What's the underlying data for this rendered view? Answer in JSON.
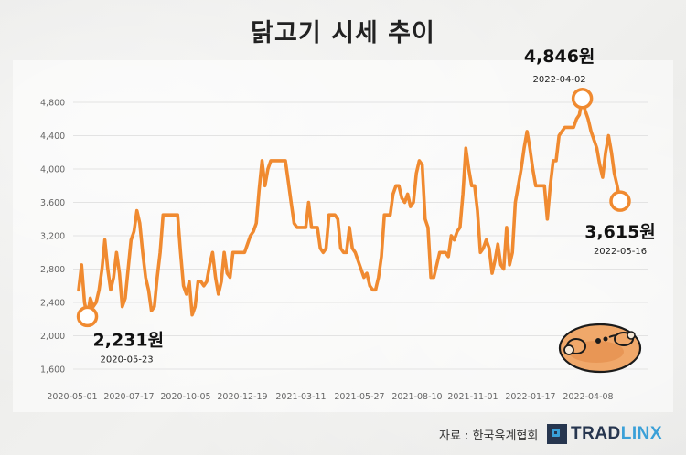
{
  "title": "닭고기 시세 추이",
  "source": "자료 : 한국육계협회",
  "logo": {
    "part1": "TRAD",
    "part2": "LINX"
  },
  "colors": {
    "line": "#f08a30",
    "marker_fill": "#ffffff",
    "grid": "#e3e3e3"
  },
  "chart_data": {
    "type": "line",
    "title": "닭고기 시세 추이",
    "xlabel": "",
    "ylabel": "",
    "ylim": [
      1600,
      5000
    ],
    "y_ticks": [
      "1,600",
      "2,000",
      "2,400",
      "2,800",
      "3,200",
      "3,600",
      "4,000",
      "4,400",
      "4,800"
    ],
    "x_ticks": [
      "2020-05-01",
      "2020-07-17",
      "2020-10-05",
      "2020-12-19",
      "2021-03-11",
      "2021-05-27",
      "2021-08-10",
      "2021-11-01",
      "2022-01-17",
      "2022-04-08"
    ],
    "grid": true,
    "series": [
      {
        "values": [
          2550,
          2850,
          2400,
          2231,
          2450,
          2350,
          2400,
          2550,
          2800,
          3150,
          2800,
          2550,
          2700,
          3000,
          2750,
          2350,
          2450,
          2800,
          3150,
          3250,
          3500,
          3350,
          3000,
          2700,
          2550,
          2300,
          2350,
          2700,
          3000,
          3450,
          3450,
          3450,
          3450,
          3450,
          3450,
          3000,
          2600,
          2500,
          2650,
          2250,
          2350,
          2650,
          2650,
          2600,
          2650,
          2850,
          3000,
          2700,
          2500,
          2650,
          3000,
          2750,
          2700,
          3000,
          3000,
          3000,
          3000,
          3000,
          3100,
          3200,
          3250,
          3350,
          3750,
          4100,
          3800,
          4000,
          4100,
          4100,
          4100,
          4100,
          4100,
          4100,
          3850,
          3600,
          3350,
          3300,
          3300,
          3300,
          3300,
          3600,
          3300,
          3300,
          3300,
          3050,
          3000,
          3050,
          3450,
          3450,
          3450,
          3400,
          3050,
          3000,
          3000,
          3300,
          3050,
          3000,
          2900,
          2800,
          2700,
          2750,
          2600,
          2550,
          2550,
          2700,
          2950,
          3450,
          3450,
          3450,
          3700,
          3800,
          3800,
          3650,
          3600,
          3700,
          3550,
          3600,
          3950,
          4100,
          4050,
          3400,
          3300,
          2700,
          2700,
          2850,
          3000,
          3000,
          3000,
          2950,
          3200,
          3150,
          3250,
          3300,
          3700,
          4250,
          4000,
          3800,
          3800,
          3500,
          3000,
          3050,
          3150,
          3050,
          2750,
          2900,
          3100,
          2850,
          2800,
          3300,
          2850,
          3000,
          3600,
          3800,
          4000,
          4250,
          4450,
          4250,
          4000,
          3800,
          3800,
          3800,
          3800,
          3400,
          3800,
          4100,
          4100,
          4400,
          4450,
          4500,
          4500,
          4500,
          4500,
          4600,
          4650,
          4846,
          4700,
          4600,
          4450,
          4350,
          4250,
          4050,
          3900,
          4200,
          4400,
          4200,
          3950,
          3800,
          3615
        ]
      }
    ],
    "annotations": [
      {
        "label": "2,231원",
        "date": "2020-05-23",
        "value": 2231
      },
      {
        "label": "4,846원",
        "date": "2022-04-02",
        "value": 4846
      },
      {
        "label": "3,615원",
        "date": "2022-05-16",
        "value": 3615
      }
    ]
  }
}
